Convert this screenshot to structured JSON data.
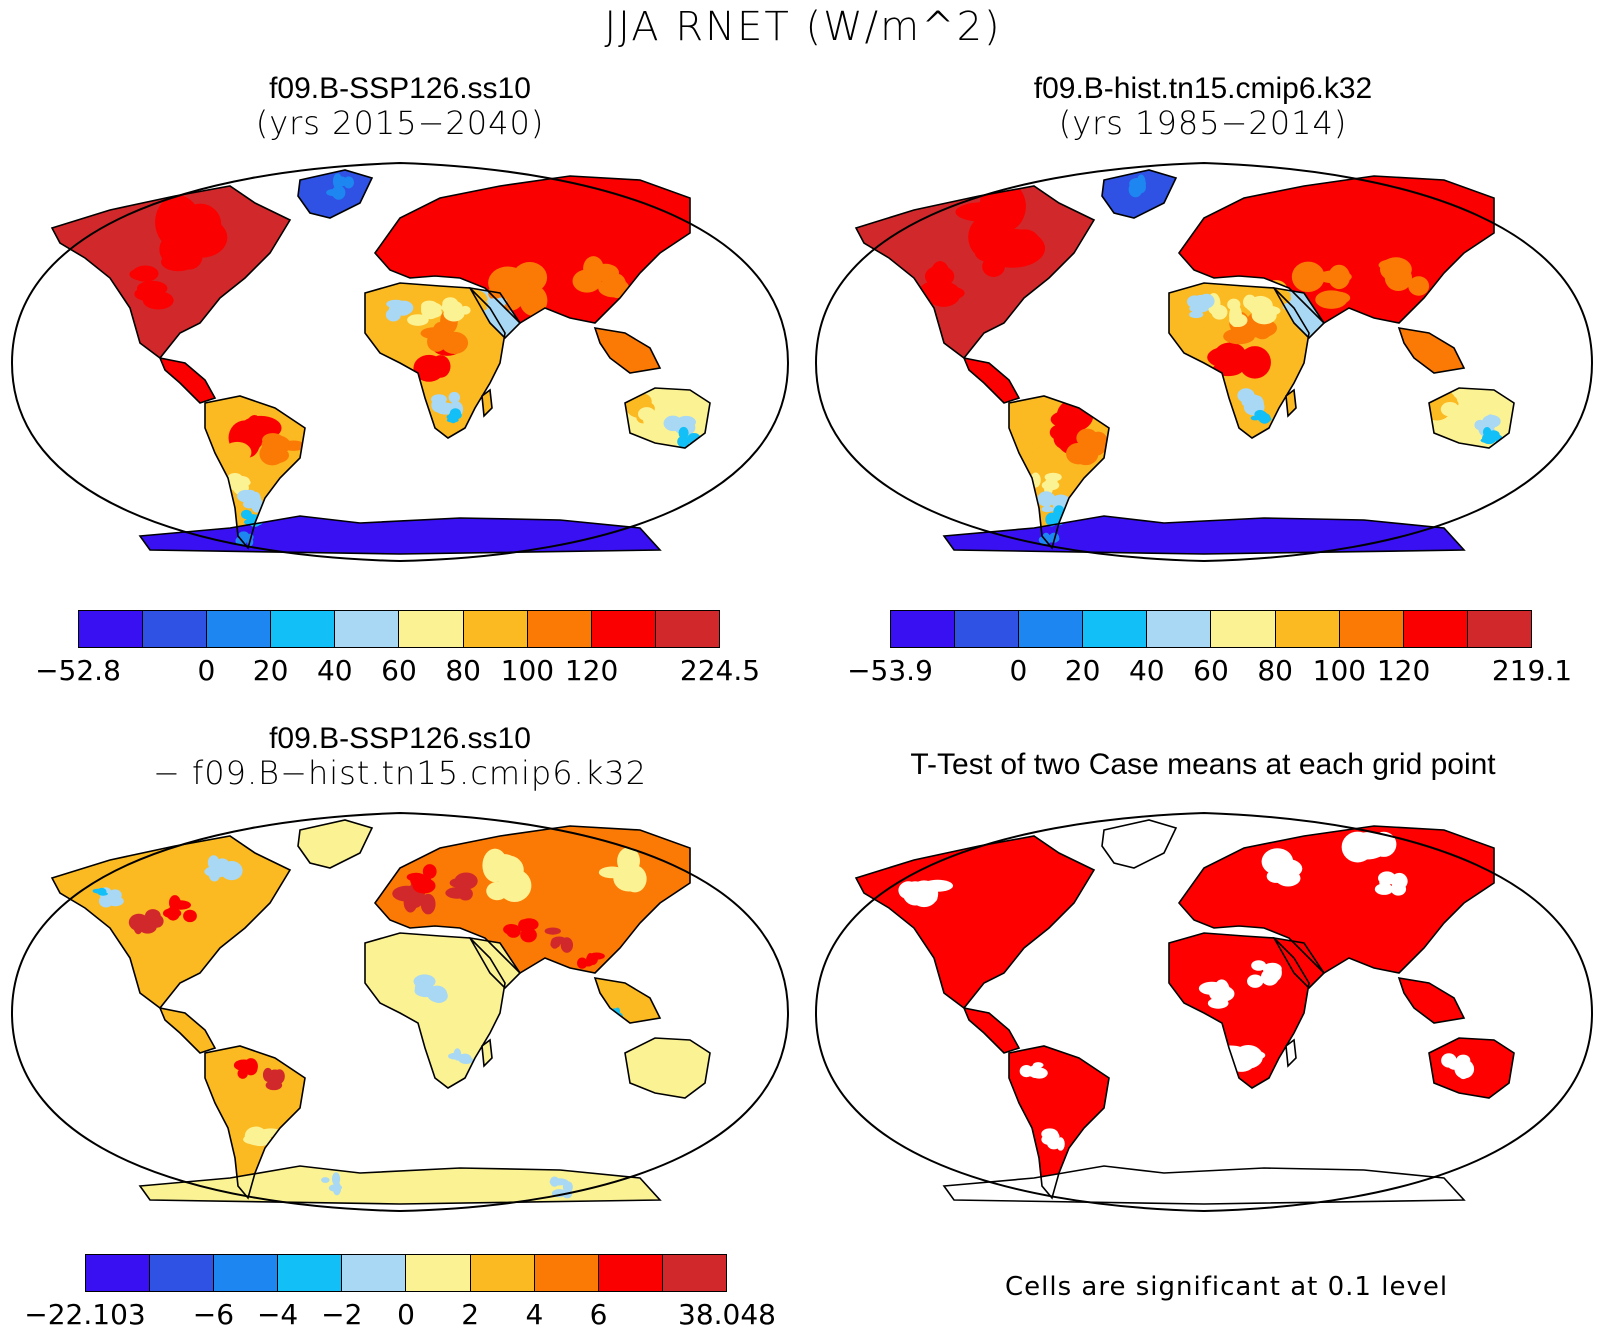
{
  "main_title": "JJA RNET (W/m^2)",
  "panels": [
    {
      "title": "f09.B-SSP126.ss10",
      "subtitle": "(yrs 2015−2040)",
      "kind": "clim"
    },
    {
      "title": "f09.B-hist.tn15.cmip6.k32",
      "subtitle": "(yrs 1985−2014)",
      "kind": "clim"
    },
    {
      "title": "f09.B-SSP126.ss10",
      "subtitle": "− f09.B−hist.tn15.cmip6.k32",
      "kind": "diff"
    },
    {
      "title": "T-Test of two Case means at each grid point",
      "subtitle": "",
      "kind": "ttest"
    }
  ],
  "colorbars": [
    {
      "colors": [
        "#3810f2",
        "#2f52e4",
        "#1e86f0",
        "#12bff6",
        "#a8d8f3",
        "#fbf293",
        "#fbb922",
        "#fb7a06",
        "#fb0000",
        "#d1292b"
      ],
      "labels": [
        "−52.8",
        "0",
        "20",
        "40",
        "60",
        "80",
        "100",
        "120",
        "224.5"
      ],
      "label_slots": [
        0,
        2,
        3,
        4,
        5,
        6,
        7,
        8,
        10
      ]
    },
    {
      "colors": [
        "#3810f2",
        "#2f52e4",
        "#1e86f0",
        "#12bff6",
        "#a8d8f3",
        "#fbf293",
        "#fbb922",
        "#fb7a06",
        "#fb0000",
        "#d1292b"
      ],
      "labels": [
        "−53.9",
        "0",
        "20",
        "40",
        "60",
        "80",
        "100",
        "120",
        "219.1"
      ],
      "label_slots": [
        0,
        2,
        3,
        4,
        5,
        6,
        7,
        8,
        10
      ]
    },
    {
      "colors": [
        "#3810f2",
        "#2f52e4",
        "#1e86f0",
        "#12bff6",
        "#a8d8f3",
        "#fbf293",
        "#fbb922",
        "#fb7a06",
        "#fb0000",
        "#d1292b"
      ],
      "labels": [
        "−22.103",
        "−6",
        "−4",
        "−2",
        "0",
        "2",
        "4",
        "6",
        "38.048"
      ],
      "label_slots": [
        0,
        2,
        3,
        4,
        5,
        6,
        7,
        8,
        10
      ]
    }
  ],
  "significance_note": "Cells are significant at 0.1 level",
  "colors": {
    "ocean": "#ffffff",
    "coast": "#000000",
    "significant": "#ff0000"
  }
}
